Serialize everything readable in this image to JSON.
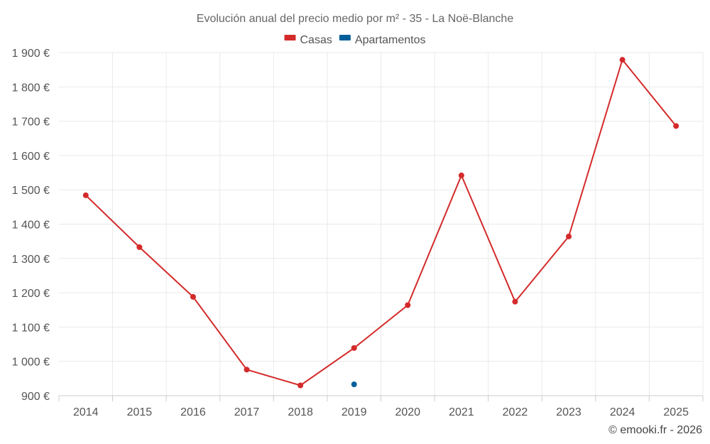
{
  "chart_data": {
    "type": "line",
    "title": "Evolución anual del precio medio por m² - 35 - La Noë-Blanche",
    "categories": [
      "2014",
      "2015",
      "2016",
      "2017",
      "2018",
      "2019",
      "2020",
      "2021",
      "2022",
      "2023",
      "2024",
      "2025"
    ],
    "series": [
      {
        "name": "Casas",
        "color": "#d42a2a",
        "values": [
          1484,
          1333,
          1188,
          976,
          930,
          1039,
          1164,
          1542,
          1174,
          1364,
          1879,
          1686
        ]
      },
      {
        "name": "Apartamentos",
        "color": "#005f9a",
        "values": [
          null,
          null,
          null,
          null,
          null,
          933,
          null,
          null,
          null,
          null,
          null,
          null
        ]
      }
    ],
    "ylim": [
      900,
      1900
    ],
    "yticks": [
      900,
      1000,
      1100,
      1200,
      1300,
      1400,
      1500,
      1600,
      1700,
      1800,
      1900
    ],
    "ytick_labels": [
      "900 €",
      "1 000 €",
      "1 100 €",
      "1 200 €",
      "1 300 €",
      "1 400 €",
      "1 500 €",
      "1 600 €",
      "1 700 €",
      "1 800 €",
      "1 900 €"
    ],
    "xlabel": "",
    "ylabel": "",
    "grid": true,
    "legend_position": "top-center"
  },
  "credit": "© emooki.fr - 2026"
}
